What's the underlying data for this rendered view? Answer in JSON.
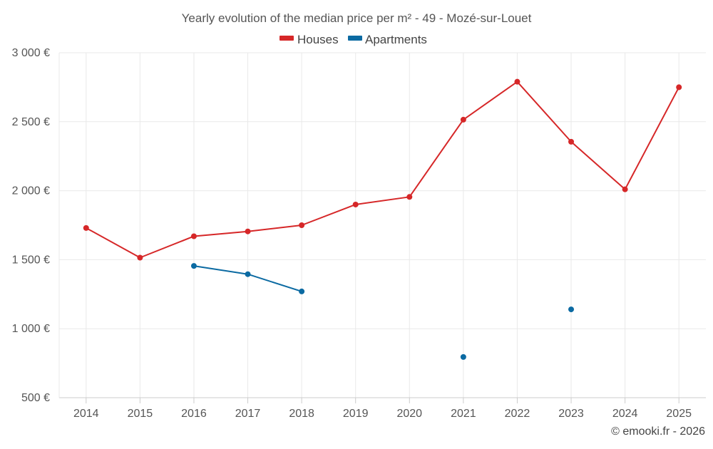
{
  "chart_data": {
    "type": "line",
    "title": "Yearly evolution of the median price per m² - 49 - Mozé-sur-Louet",
    "categories": [
      "2014",
      "2015",
      "2016",
      "2017",
      "2018",
      "2019",
      "2020",
      "2021",
      "2022",
      "2023",
      "2024",
      "2025"
    ],
    "y_tick_labels": [
      "500 €",
      "1 000 €",
      "1 500 €",
      "2 000 €",
      "2 500 €",
      "3 000 €"
    ],
    "y_ticks": [
      500,
      1000,
      1500,
      2000,
      2500,
      3000
    ],
    "ylim": [
      500,
      3000
    ],
    "grid": true,
    "legend_position": "top-center",
    "series": [
      {
        "name": "Houses",
        "color": "#d62728",
        "values": [
          1730,
          1515,
          1670,
          1705,
          1750,
          1900,
          1955,
          2515,
          2790,
          2355,
          2010,
          2750
        ]
      },
      {
        "name": "Apartments",
        "color": "#0b6aa2",
        "values": [
          null,
          null,
          1455,
          1395,
          1270,
          null,
          null,
          795,
          null,
          1140,
          null,
          null
        ]
      }
    ],
    "credit": "© emooki.fr - 2026"
  }
}
